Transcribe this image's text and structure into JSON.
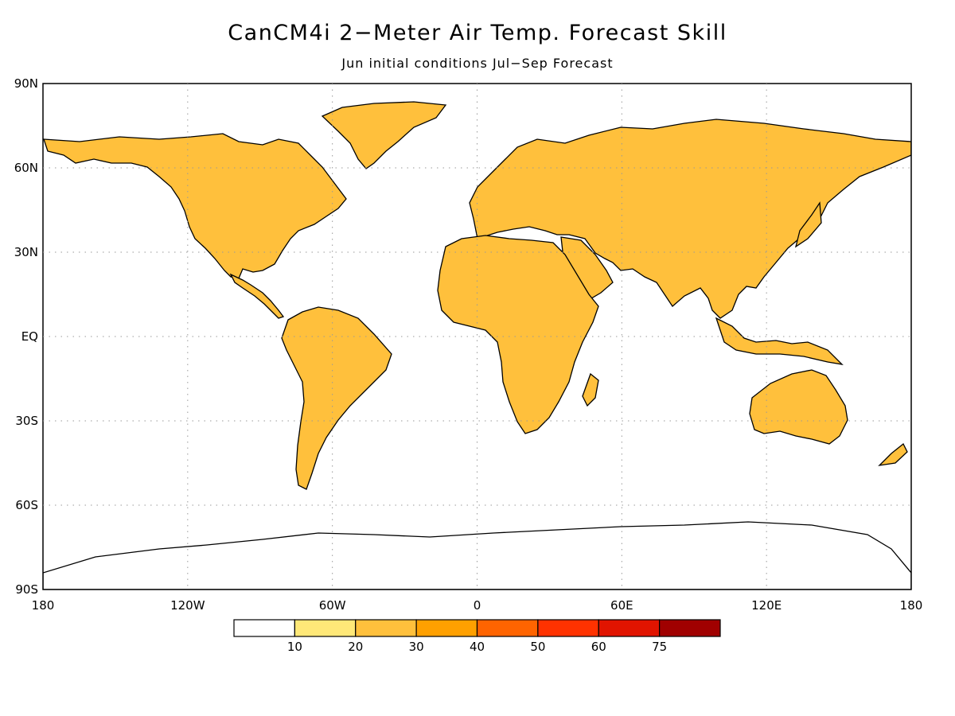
{
  "title": "CanCM4i 2−Meter Air Temp. Forecast Skill",
  "subtitle": "Jun initial conditions   Jul−Sep Forecast",
  "map": {
    "projection": "equirectangular",
    "lon_range": [
      -180,
      180
    ],
    "lat_range": [
      -90,
      90
    ],
    "grid": true,
    "lat_ticks": [
      {
        "value": 90,
        "label": "90N"
      },
      {
        "value": 60,
        "label": "60N"
      },
      {
        "value": 30,
        "label": "30N"
      },
      {
        "value": 0,
        "label": "EQ"
      },
      {
        "value": -30,
        "label": "30S"
      },
      {
        "value": -60,
        "label": "60S"
      },
      {
        "value": -90,
        "label": "90S"
      }
    ],
    "lon_ticks": [
      {
        "value": -180,
        "label": "180"
      },
      {
        "value": -120,
        "label": "120W"
      },
      {
        "value": -60,
        "label": "60W"
      },
      {
        "value": 0,
        "label": "0"
      },
      {
        "value": 60,
        "label": "60E"
      },
      {
        "value": 120,
        "label": "120E"
      },
      {
        "value": 180,
        "label": "180"
      }
    ]
  },
  "colorbar": {
    "bins": [
      {
        "color": "#ffffff",
        "label": "10"
      },
      {
        "color": "#ffe878",
        "label": "20"
      },
      {
        "color": "#ffc03c",
        "label": "30"
      },
      {
        "color": "#ffa000",
        "label": "40"
      },
      {
        "color": "#ff6400",
        "label": "50"
      },
      {
        "color": "#ff3200",
        "label": "60"
      },
      {
        "color": "#e11400",
        "label": "75"
      },
      {
        "color": "#a00000",
        "label": ""
      }
    ]
  },
  "ocean_color": "#ffffff",
  "coast_color": "#000000"
}
